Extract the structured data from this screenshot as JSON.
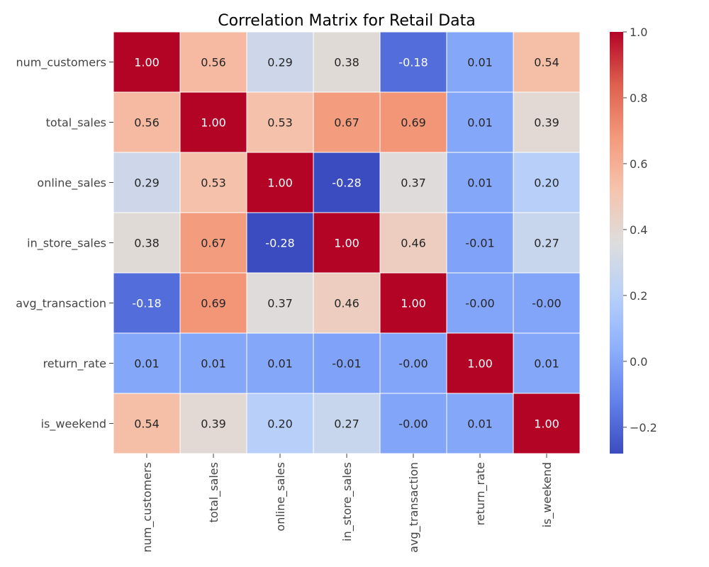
{
  "chart_data": {
    "type": "heatmap",
    "title": "Correlation Matrix for Retail Data",
    "row_labels": [
      "num_customers",
      "total_sales",
      "online_sales",
      "in_store_sales",
      "avg_transaction",
      "return_rate",
      "is_weekend"
    ],
    "col_labels": [
      "num_customers",
      "total_sales",
      "online_sales",
      "in_store_sales",
      "avg_transaction",
      "return_rate",
      "is_weekend"
    ],
    "values": [
      [
        1.0,
        0.56,
        0.29,
        0.38,
        -0.18,
        0.01,
        0.54
      ],
      [
        0.56,
        1.0,
        0.53,
        0.67,
        0.69,
        0.01,
        0.39
      ],
      [
        0.29,
        0.53,
        1.0,
        -0.28,
        0.37,
        0.01,
        0.2
      ],
      [
        0.38,
        0.67,
        -0.28,
        1.0,
        0.46,
        -0.01,
        0.27
      ],
      [
        -0.18,
        0.69,
        0.37,
        0.46,
        1.0,
        -0.0,
        -0.0
      ],
      [
        0.01,
        0.01,
        0.01,
        -0.01,
        -0.0,
        1.0,
        0.01
      ],
      [
        0.54,
        0.39,
        0.2,
        0.27,
        -0.0,
        0.01,
        1.0
      ]
    ],
    "value_labels": [
      [
        "1.00",
        "0.56",
        "0.29",
        "0.38",
        "-0.18",
        "0.01",
        "0.54"
      ],
      [
        "0.56",
        "1.00",
        "0.53",
        "0.67",
        "0.69",
        "0.01",
        "0.39"
      ],
      [
        "0.29",
        "0.53",
        "1.00",
        "-0.28",
        "0.37",
        "0.01",
        "0.20"
      ],
      [
        "0.38",
        "0.67",
        "-0.28",
        "1.00",
        "0.46",
        "-0.01",
        "0.27"
      ],
      [
        "-0.18",
        "0.69",
        "0.37",
        "0.46",
        "1.00",
        "-0.00",
        "-0.00"
      ],
      [
        "0.01",
        "0.01",
        "0.01",
        "-0.01",
        "-0.00",
        "1.00",
        "0.01"
      ],
      [
        "0.54",
        "0.39",
        "0.20",
        "0.27",
        "-0.00",
        "0.01",
        "1.00"
      ]
    ],
    "colormap": "coolwarm",
    "colorbar": {
      "range": [
        -0.28,
        1.0
      ],
      "ticks": [
        -0.2,
        0.0,
        0.2,
        0.4,
        0.6,
        0.8,
        1.0
      ],
      "tick_labels": [
        "−0.2",
        "0.0",
        "0.2",
        "0.4",
        "0.6",
        "0.8",
        "1.0"
      ]
    },
    "grid": false,
    "legend": "colorbar-right"
  }
}
